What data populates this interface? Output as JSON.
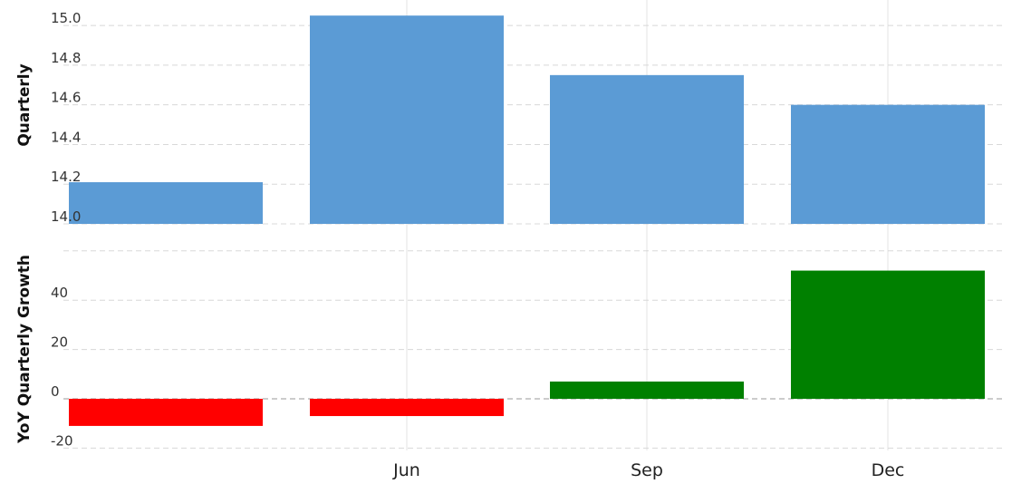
{
  "chart_data": [
    {
      "type": "bar",
      "ylabel": "Quarterly",
      "categories": [
        "",
        "Jun",
        "Sep",
        "Dec"
      ],
      "values": [
        14.21,
        15.05,
        14.75,
        14.6
      ],
      "ylim": [
        14.0,
        15.06
      ],
      "yticks": [
        14.0,
        14.2,
        14.4,
        14.6,
        14.8,
        15.0
      ],
      "ytick_labels": [
        "14.0",
        "14.2",
        "14.4",
        "14.6",
        "14.8",
        "15.0"
      ],
      "grid": true,
      "color": "#5b9bd5"
    },
    {
      "type": "bar",
      "ylabel": "YoY Quarterly Growth",
      "categories": [
        "",
        "Jun",
        "Sep",
        "Dec"
      ],
      "values": [
        -11,
        -7,
        7,
        52
      ],
      "ylim": [
        -20,
        60
      ],
      "yticks": [
        -20,
        0,
        20,
        40
      ],
      "ytick_labels": [
        "-20",
        "0",
        "20",
        "40"
      ],
      "grid": true,
      "positive_color": "#008000",
      "negative_color": "#ff0000"
    }
  ],
  "x_tick_labels": [
    "Jun",
    "Sep",
    "Dec"
  ]
}
